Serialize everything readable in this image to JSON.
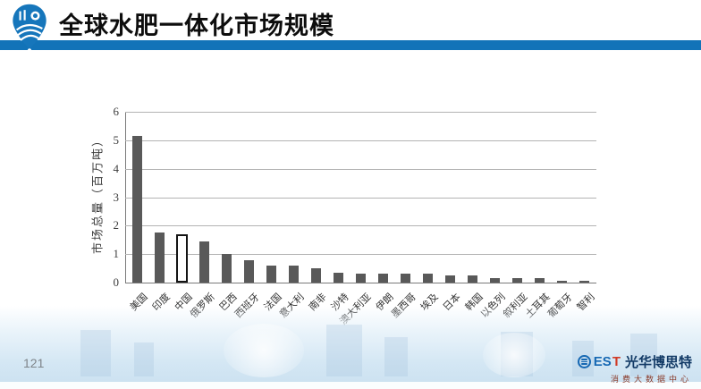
{
  "header": {
    "title": "全球水肥一体化市场规模",
    "accent_color": "#1273b8",
    "logo": "map-pin-farm-logo"
  },
  "chart_data": {
    "type": "bar",
    "title": "",
    "xlabel": "",
    "ylabel": "市场总量（百万吨）",
    "ylim": [
      0,
      6
    ],
    "yticks": [
      0,
      1,
      2,
      3,
      4,
      5,
      6
    ],
    "grid": true,
    "legend": "none",
    "bar_color": "#595959",
    "gridline_color": "#b3b3b3",
    "highlight_category": "中国",
    "highlight_style": "hollow-outlined-bar",
    "categories": [
      "美国",
      "印度",
      "中国",
      "俄罗斯",
      "巴西",
      "西班牙",
      "法国",
      "意大利",
      "南非",
      "沙特",
      "澳大利亚",
      "伊朗",
      "墨西哥",
      "埃及",
      "日本",
      "韩国",
      "以色列",
      "叙利亚",
      "土耳其",
      "葡萄牙",
      "智利"
    ],
    "values": [
      5.15,
      1.75,
      1.7,
      1.45,
      1.0,
      0.8,
      0.6,
      0.6,
      0.5,
      0.35,
      0.3,
      0.3,
      0.3,
      0.3,
      0.25,
      0.25,
      0.15,
      0.15,
      0.15,
      0.05,
      0.05
    ]
  },
  "footer": {
    "page_number": "121",
    "brand": {
      "est_blue": "ES",
      "est_red": "T",
      "name": "光华博思特",
      "subtitle": "消费大数据中心"
    }
  }
}
